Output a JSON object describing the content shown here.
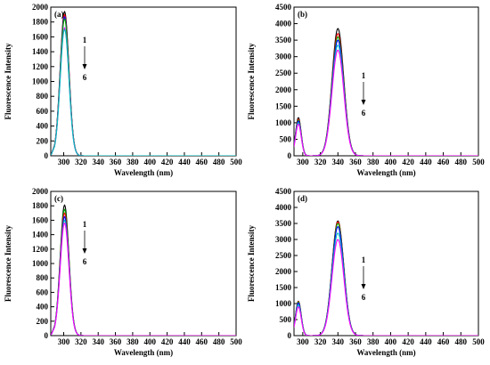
{
  "chart_data": [
    {
      "type": "line",
      "panel_label": "(a)",
      "xlabel": "Wavelength (nm)",
      "ylabel": "Fluorescence Intensity",
      "xlim": [
        285,
        500
      ],
      "ylim": [
        0,
        2000
      ],
      "xticks": [
        300,
        320,
        340,
        360,
        380,
        400,
        420,
        440,
        460,
        480,
        500
      ],
      "yticks": [
        0,
        200,
        400,
        600,
        800,
        1000,
        1200,
        1400,
        1600,
        1800,
        2000
      ],
      "annotation": {
        "top": "1",
        "bottom": "6",
        "arrow": "down"
      },
      "peak_x": 301,
      "peak_width": 7.2,
      "side_amp": 0,
      "start_ratio": 0.27,
      "series": [
        {
          "color": "#000000",
          "peak": 1940
        },
        {
          "color": "#ff0000",
          "peak": 1900
        },
        {
          "color": "#0000ff",
          "peak": 1870
        },
        {
          "color": "#00aa00",
          "peak": 1840
        },
        {
          "color": "#ff00ff",
          "peak": 1720
        },
        {
          "color": "#00c0c0",
          "peak": 1700
        }
      ]
    },
    {
      "type": "line",
      "panel_label": "(b)",
      "xlabel": "Wavelength (nm)",
      "ylabel": "Fluorescence Intensity",
      "xlim": [
        290,
        500
      ],
      "ylim": [
        0,
        4500
      ],
      "xticks": [
        300,
        320,
        340,
        360,
        380,
        400,
        420,
        440,
        460,
        480,
        500
      ],
      "yticks": [
        0,
        500,
        1000,
        1500,
        2000,
        2500,
        3000,
        3500,
        4000,
        4500
      ],
      "annotation": {
        "top": "1",
        "bottom": "6",
        "arrow": "down"
      },
      "peak_x": 340,
      "peak_width": 9.5,
      "side_amp": 0.3,
      "start_ratio": 0,
      "series": [
        {
          "color": "#000000",
          "peak": 3850
        },
        {
          "color": "#ff0000",
          "peak": 3700
        },
        {
          "color": "#00aa00",
          "peak": 3600
        },
        {
          "color": "#0000ff",
          "peak": 3500
        },
        {
          "color": "#00c0c0",
          "peak": 3350
        },
        {
          "color": "#ff00ff",
          "peak": 3200
        }
      ]
    },
    {
      "type": "line",
      "panel_label": "(c)",
      "xlabel": "Wavelength (nm)",
      "ylabel": "Fluorescence Intensity",
      "xlim": [
        285,
        500
      ],
      "ylim": [
        0,
        2000
      ],
      "xticks": [
        300,
        320,
        340,
        360,
        380,
        400,
        420,
        440,
        460,
        480,
        500
      ],
      "yticks": [
        0,
        200,
        400,
        600,
        800,
        1000,
        1200,
        1400,
        1600,
        1800,
        2000
      ],
      "annotation": {
        "top": "1",
        "bottom": "6",
        "arrow": "down"
      },
      "peak_x": 301,
      "peak_width": 7.2,
      "side_amp": 0,
      "start_ratio": 0.27,
      "series": [
        {
          "color": "#000000",
          "peak": 1810
        },
        {
          "color": "#00aa00",
          "peak": 1750
        },
        {
          "color": "#ff0000",
          "peak": 1700
        },
        {
          "color": "#0000ff",
          "peak": 1650
        },
        {
          "color": "#00c0c0",
          "peak": 1600
        },
        {
          "color": "#ff00ff",
          "peak": 1560
        }
      ]
    },
    {
      "type": "line",
      "panel_label": "(d)",
      "xlabel": "Wavelength (nm)",
      "ylabel": "Fluorescence Intensity",
      "xlim": [
        290,
        500
      ],
      "ylim": [
        0,
        4500
      ],
      "xticks": [
        300,
        320,
        340,
        360,
        380,
        400,
        420,
        440,
        460,
        480,
        500
      ],
      "yticks": [
        0,
        500,
        1000,
        1500,
        2000,
        2500,
        3000,
        3500,
        4000,
        4500
      ],
      "annotation": {
        "top": "1",
        "bottom": "6",
        "arrow": "down"
      },
      "peak_x": 340,
      "peak_width": 9.5,
      "side_amp": 0.3,
      "start_ratio": 0,
      "series": [
        {
          "color": "#000000",
          "peak": 3580
        },
        {
          "color": "#ff0000",
          "peak": 3550
        },
        {
          "color": "#00aa00",
          "peak": 3500
        },
        {
          "color": "#0000ff",
          "peak": 3400
        },
        {
          "color": "#00c0c0",
          "peak": 3200
        },
        {
          "color": "#ff00ff",
          "peak": 3000
        }
      ]
    }
  ]
}
